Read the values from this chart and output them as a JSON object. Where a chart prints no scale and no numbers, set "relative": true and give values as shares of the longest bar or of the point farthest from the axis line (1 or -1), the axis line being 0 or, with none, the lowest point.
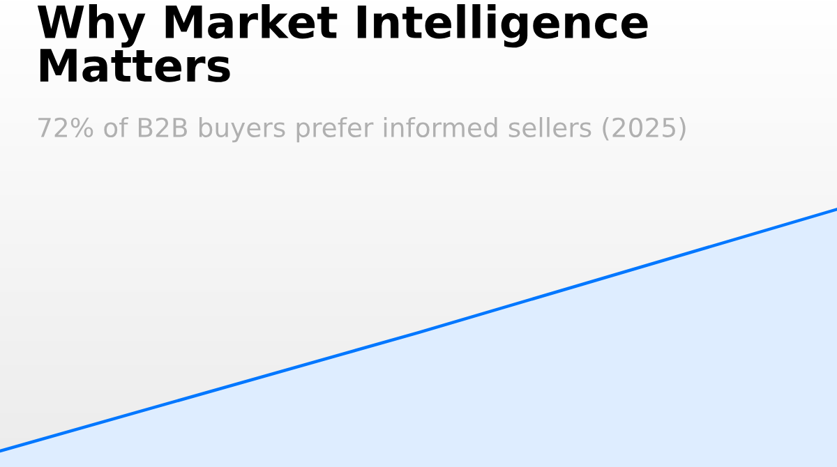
{
  "chart_data": {
    "type": "area",
    "title": "Why Market Intelligence Matters",
    "subtitle": "72% of B2B buyers prefer informed sellers (2025)",
    "categories": [
      null,
      null,
      null
    ],
    "series": [
      {
        "color": "#0077ff",
        "values": [
          0,
          0.49,
          1
        ]
      }
    ],
    "relative": true
  }
}
